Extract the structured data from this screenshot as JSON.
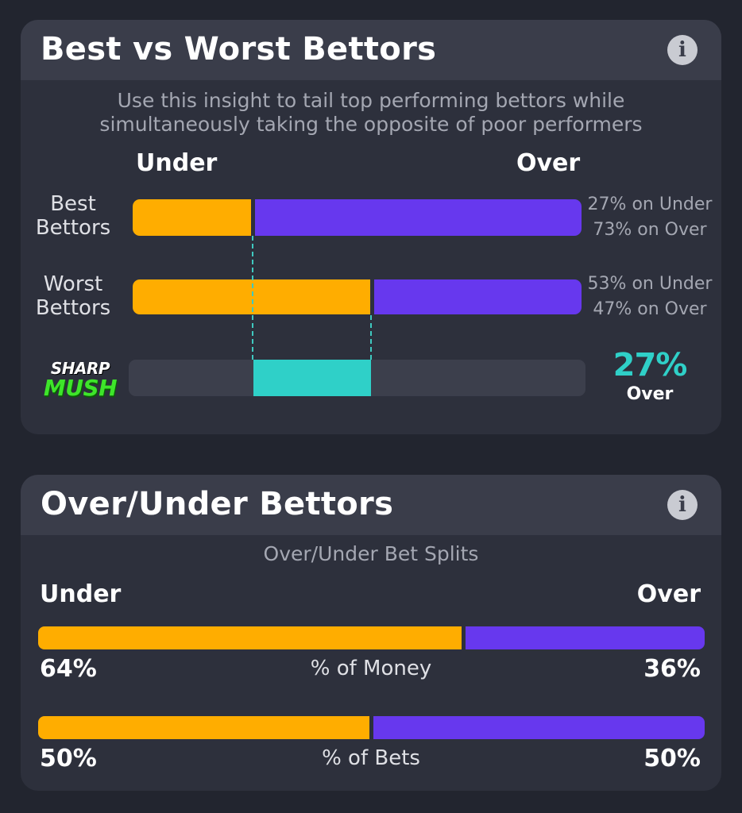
{
  "best_worst": {
    "title": "Best vs Worst Bettors",
    "description_line1": "Use this insight to tail top performing bettors while",
    "description_line2": "simultaneously taking the opposite of poor performers",
    "under_label": "Under",
    "over_label": "Over",
    "rows": [
      {
        "label_line1": "Best",
        "label_line2": "Bettors",
        "under_pct": 27,
        "over_pct": 73,
        "under_text": "27% on Under",
        "over_text": "73% on Over"
      },
      {
        "label_line1": "Worst",
        "label_line2": "Bettors",
        "under_pct": 53,
        "over_pct": 47,
        "under_text": "53% on Under",
        "over_text": "47% on Over"
      }
    ],
    "sharp_mush": {
      "logo_top": "SHARP",
      "logo_bottom": "MUSH",
      "value_text": "27%",
      "side_text": "Over",
      "range_start_pct": 27,
      "range_end_pct": 53
    }
  },
  "over_under": {
    "title": "Over/Under Bettors",
    "subtitle": "Over/Under Bet Splits",
    "under_label": "Under",
    "over_label": "Over",
    "splits": [
      {
        "label": "% of Money",
        "under_pct": 64,
        "over_pct": 36,
        "under_text": "64%",
        "over_text": "36%"
      },
      {
        "label": "% of Bets",
        "under_pct": 50,
        "over_pct": 50,
        "under_text": "50%",
        "over_text": "50%"
      }
    ]
  },
  "colors": {
    "under": "#ffad00",
    "over": "#6738ee",
    "sharp": "#2fd0c8",
    "logo_green": "#3ee52a"
  },
  "icons": [
    "info-icon",
    "info-icon"
  ]
}
